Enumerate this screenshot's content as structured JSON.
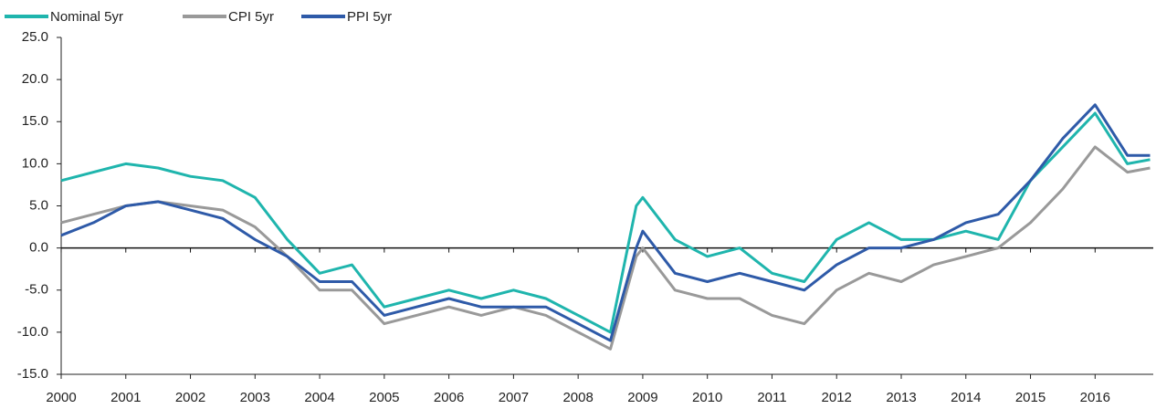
{
  "chart_data": {
    "type": "line",
    "x": [
      2000,
      2000.5,
      2001,
      2001.5,
      2002,
      2002.5,
      2003,
      2003.5,
      2004,
      2004.5,
      2005,
      2005.5,
      2006,
      2006.5,
      2007,
      2007.5,
      2008,
      2008.5,
      2008.9,
      2009,
      2009.5,
      2010,
      2010.5,
      2011,
      2011.5,
      2012,
      2012.5,
      2013,
      2013.5,
      2014,
      2014.5,
      2015,
      2015.5,
      2016,
      2016.5,
      2016.85
    ],
    "series": [
      {
        "name": "Nominal 5yr",
        "color": "#1fb5ad",
        "values": [
          8,
          9,
          10,
          9.5,
          8.5,
          8,
          6,
          1,
          -3,
          -2,
          -7,
          -6,
          -5,
          -6,
          -5,
          -6,
          -8,
          -10,
          5,
          6,
          1,
          -1,
          0,
          -3,
          -4,
          1,
          3,
          1,
          1,
          2,
          1,
          8,
          12,
          16,
          10,
          10.5
        ]
      },
      {
        "name": "CPI 5yr",
        "color": "#999999",
        "values": [
          3,
          4,
          5,
          5.5,
          5,
          4.5,
          2.5,
          -1,
          -5,
          -5,
          -9,
          -8,
          -7,
          -8,
          -7,
          -8,
          -10,
          -12,
          -1,
          0,
          -5,
          -6,
          -6,
          -8,
          -9,
          -5,
          -3,
          -4,
          -2,
          -1,
          0,
          3,
          7,
          12,
          9,
          9.5
        ]
      },
      {
        "name": "PPI 5yr",
        "color": "#2e5aa8",
        "values": [
          1.5,
          3,
          5,
          5.5,
          4.5,
          3.5,
          1,
          -1,
          -4,
          -4,
          -8,
          -7,
          -6,
          -7,
          -7,
          -7,
          -9,
          -11,
          0,
          2,
          -3,
          -4,
          -3,
          -4,
          -5,
          -2,
          0,
          0,
          1,
          3,
          4,
          8,
          13,
          17,
          11,
          11
        ]
      }
    ],
    "xlim": [
      2000,
      2016.9
    ],
    "xticks": [
      2000,
      2001,
      2002,
      2003,
      2004,
      2005,
      2006,
      2007,
      2008,
      2009,
      2010,
      2011,
      2012,
      2013,
      2014,
      2015,
      2016
    ],
    "ylim": [
      -15,
      25
    ],
    "yticks": [
      {
        "value": -15,
        "label": "-15.0"
      },
      {
        "value": -10,
        "label": "-10.0"
      },
      {
        "value": -5,
        "label": "-5.0"
      },
      {
        "value": 0,
        "label": "0.0"
      },
      {
        "value": 5,
        "label": "5.0"
      },
      {
        "value": 10,
        "label": "10.0"
      },
      {
        "value": 15,
        "label": "15.0"
      },
      {
        "value": 20,
        "label": "20.0"
      },
      {
        "value": 25,
        "label": "25.0"
      }
    ],
    "grid": false,
    "legend": "top-left"
  }
}
